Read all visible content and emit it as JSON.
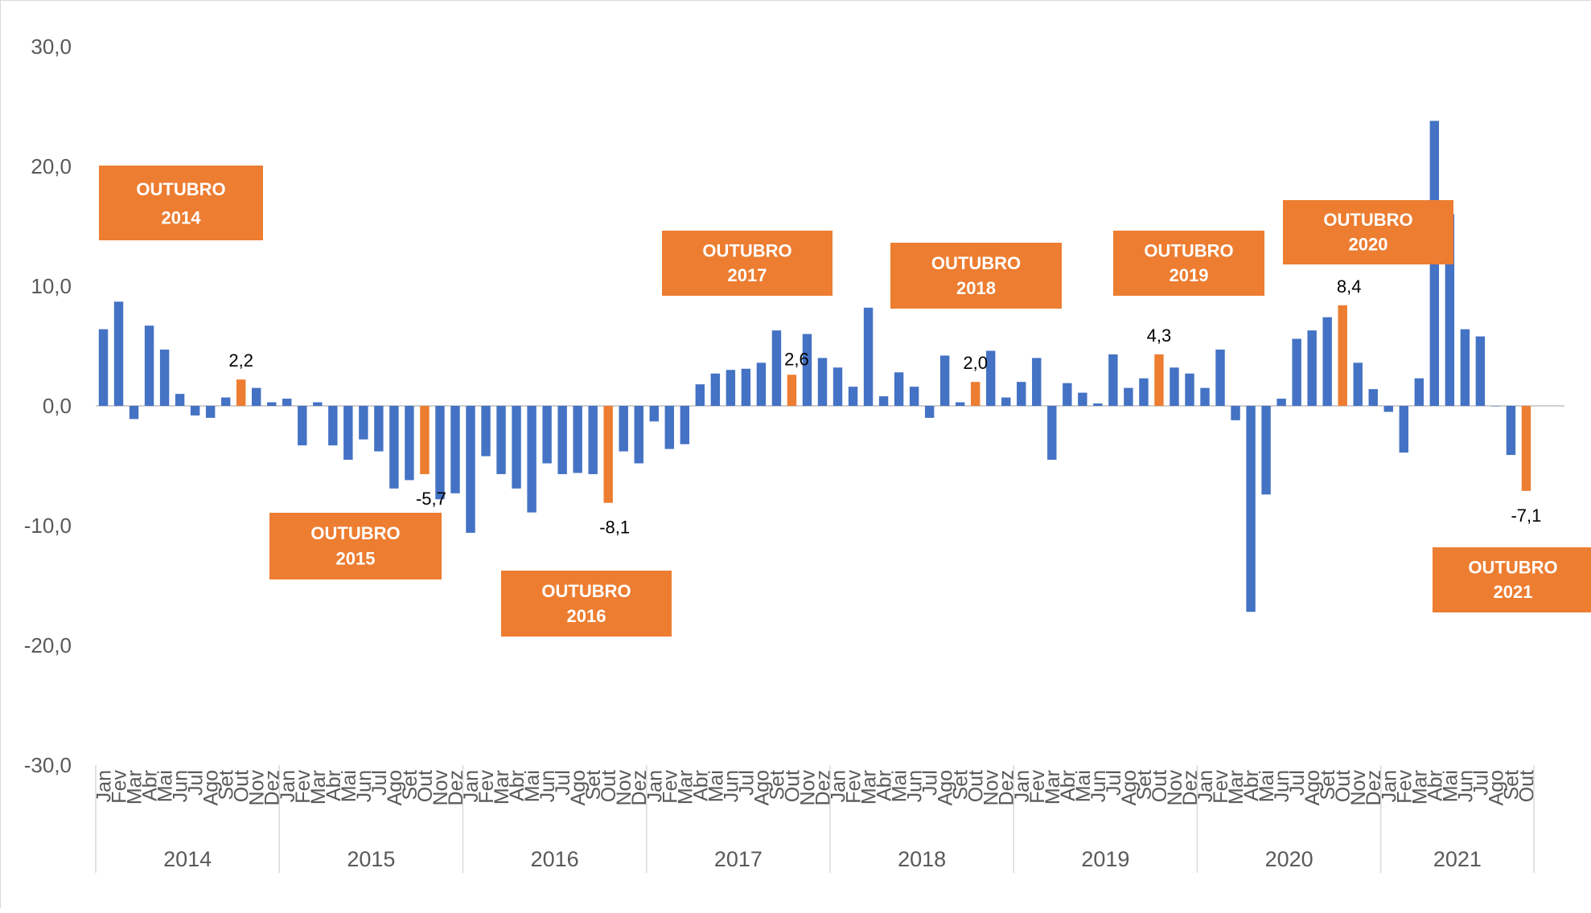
{
  "chart_data": {
    "type": "bar",
    "title": "",
    "xlabel": "",
    "ylabel": "",
    "ylim": [
      -30,
      30
    ],
    "yticks": [
      "30,0",
      "20,0",
      "10,0",
      "0,0",
      "-10,0",
      "-20,0",
      "-30,0"
    ],
    "ytick_values": [
      30,
      20,
      10,
      0,
      -10,
      -20,
      -30
    ],
    "grid": false,
    "legend": "none",
    "colors": {
      "default": "#4472C4",
      "highlight": "#ED7D31",
      "box_text": "#ffffff",
      "axis_text": "#595959"
    },
    "years": [
      "2014",
      "2015",
      "2016",
      "2017",
      "2018",
      "2019",
      "2020",
      "2021"
    ],
    "months": [
      "Jan",
      "Fev",
      "Mar",
      "Abr",
      "Mai",
      "Jun",
      "Jul",
      "Ago",
      "Set",
      "Out",
      "Nov",
      "Dez"
    ],
    "months_2021": [
      "Jan",
      "Fev",
      "Mar",
      "Abr",
      "Mai",
      "Jun",
      "Jul",
      "Ago",
      "Set",
      "Out"
    ],
    "values": [
      6.4,
      8.7,
      -1.1,
      6.7,
      4.7,
      1.0,
      -0.8,
      -1.0,
      0.7,
      2.2,
      1.5,
      0.3,
      0.6,
      -3.3,
      0.3,
      -3.3,
      -4.5,
      -2.8,
      -3.8,
      -6.9,
      -6.2,
      -5.7,
      -7.8,
      -7.3,
      -10.6,
      -4.2,
      -5.7,
      -6.9,
      -8.9,
      -4.8,
      -5.7,
      -5.6,
      -5.7,
      -8.1,
      -3.8,
      -4.8,
      -1.3,
      -3.6,
      -3.2,
      1.8,
      2.7,
      3.0,
      3.1,
      3.6,
      6.3,
      2.6,
      6.0,
      4.0,
      3.2,
      1.6,
      8.2,
      0.8,
      2.8,
      1.6,
      -1.0,
      4.2,
      0.3,
      2.0,
      4.6,
      0.7,
      2.0,
      4.0,
      -4.5,
      1.9,
      1.1,
      0.2,
      4.3,
      1.5,
      2.3,
      4.3,
      3.2,
      2.7,
      1.5,
      4.7,
      -1.2,
      -17.2,
      -7.4,
      0.6,
      5.6,
      6.3,
      7.4,
      8.4,
      3.6,
      1.4,
      -0.5,
      -3.9,
      2.3,
      23.8,
      16.0,
      6.4,
      5.8,
      0,
      -4.1,
      -7.1
    ],
    "highlight_indices": [
      9,
      21,
      33,
      45,
      57,
      69,
      81,
      93
    ],
    "value_labels": [
      "2,2",
      "-5,7",
      "-8,1",
      "2,6",
      "2,0",
      "4,3",
      "8,4",
      "-7,1"
    ],
    "annotations": [
      {
        "line1": "OUTUBRO",
        "line2": "2014"
      },
      {
        "line1": "OUTUBRO",
        "line2": "2015"
      },
      {
        "line1": "OUTUBRO",
        "line2": "2016"
      },
      {
        "line1": "OUTUBRO",
        "line2": "2017"
      },
      {
        "line1": "OUTUBRO",
        "line2": "2018"
      },
      {
        "line1": "OUTUBRO",
        "line2": "2019"
      },
      {
        "line1": "OUTUBRO",
        "line2": "2020"
      },
      {
        "line1": "OUTUBRO",
        "line2": "2021"
      }
    ]
  }
}
